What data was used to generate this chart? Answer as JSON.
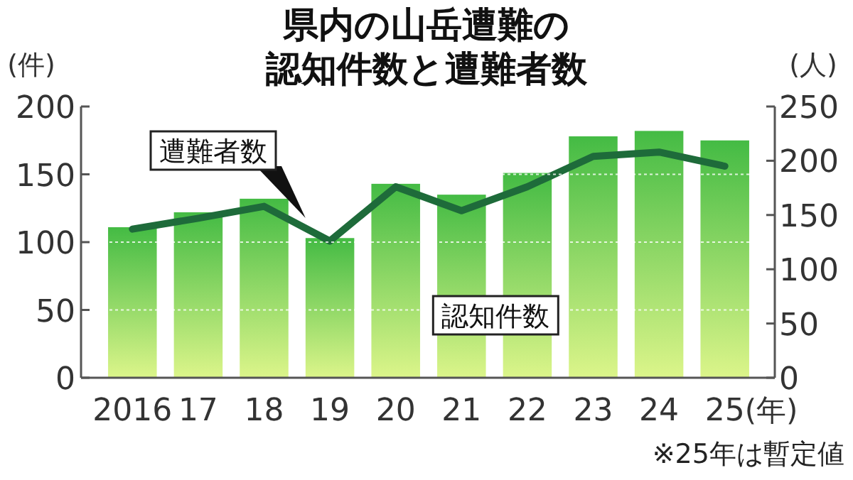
{
  "chart_data": {
    "type": "bar",
    "title": "県内の山岳遭難の",
    "subtitle": "認知件数と遭難者数",
    "ylabel": "(件)",
    "y2label": "(人)",
    "xlabel": "(年)",
    "categories": [
      "2016",
      "17",
      "18",
      "19",
      "20",
      "21",
      "22",
      "23",
      "24",
      "25"
    ],
    "series": [
      {
        "name": "認知件数",
        "color": "#44bb44",
        "values": [
          111,
          122,
          132,
          103,
          143,
          135,
          151,
          178,
          182,
          175
        ]
      },
      {
        "name": "遭難者数",
        "type": "line",
        "axis": "y2",
        "color": "#1e6b3a",
        "values": [
          137,
          147,
          158,
          126,
          176,
          154,
          176,
          204,
          208,
          195
        ]
      }
    ],
    "ylim": [
      0,
      200
    ],
    "yticks": [
      0,
      50,
      100,
      150,
      200
    ],
    "y2lim": [
      0,
      250
    ],
    "y2ticks": [
      0,
      50,
      100,
      150,
      200,
      250
    ],
    "grid": "y",
    "legend": false,
    "marker": "none",
    "line_style": "solid",
    "annotations": [
      "※25年は暫定値"
    ]
  }
}
